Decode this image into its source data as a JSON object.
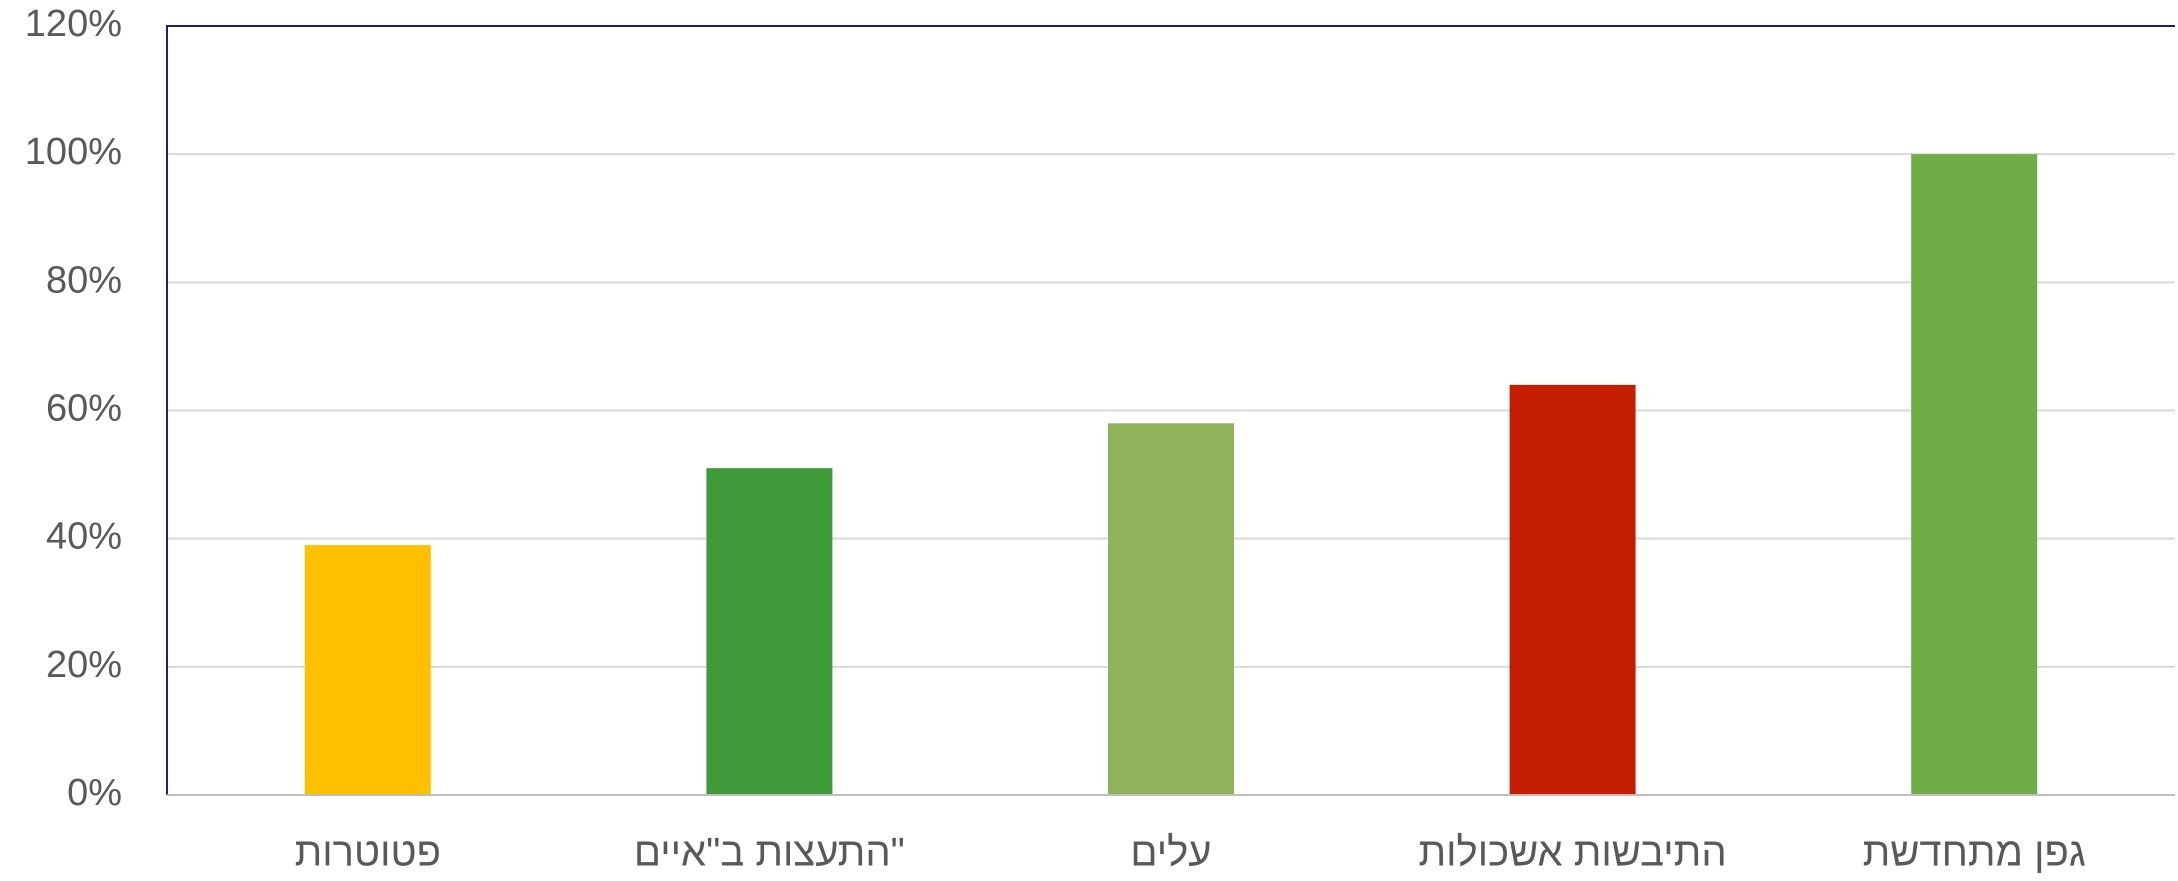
{
  "chart_data": {
    "type": "bar",
    "categories": [
      "פטוטרות",
      "התעצות ב\"איים\"",
      "עלים",
      "התיבשות אשכולות",
      "גפן מתחדשת"
    ],
    "values": [
      39,
      51,
      58,
      64,
      100
    ],
    "colors": [
      "#ffc000",
      "#3f9a3a",
      "#8fb35a",
      "#c41e00",
      "#70ad47"
    ],
    "ylim": [
      0,
      120
    ],
    "yticks": [
      {
        "value": 0,
        "label": "0%"
      },
      {
        "value": 20,
        "label": "20%"
      },
      {
        "value": 40,
        "label": "40%"
      },
      {
        "value": 60,
        "label": "60%"
      },
      {
        "value": 80,
        "label": "80%"
      },
      {
        "value": 100,
        "label": "100%"
      },
      {
        "value": 120,
        "label": "120%"
      }
    ],
    "grid": true
  }
}
